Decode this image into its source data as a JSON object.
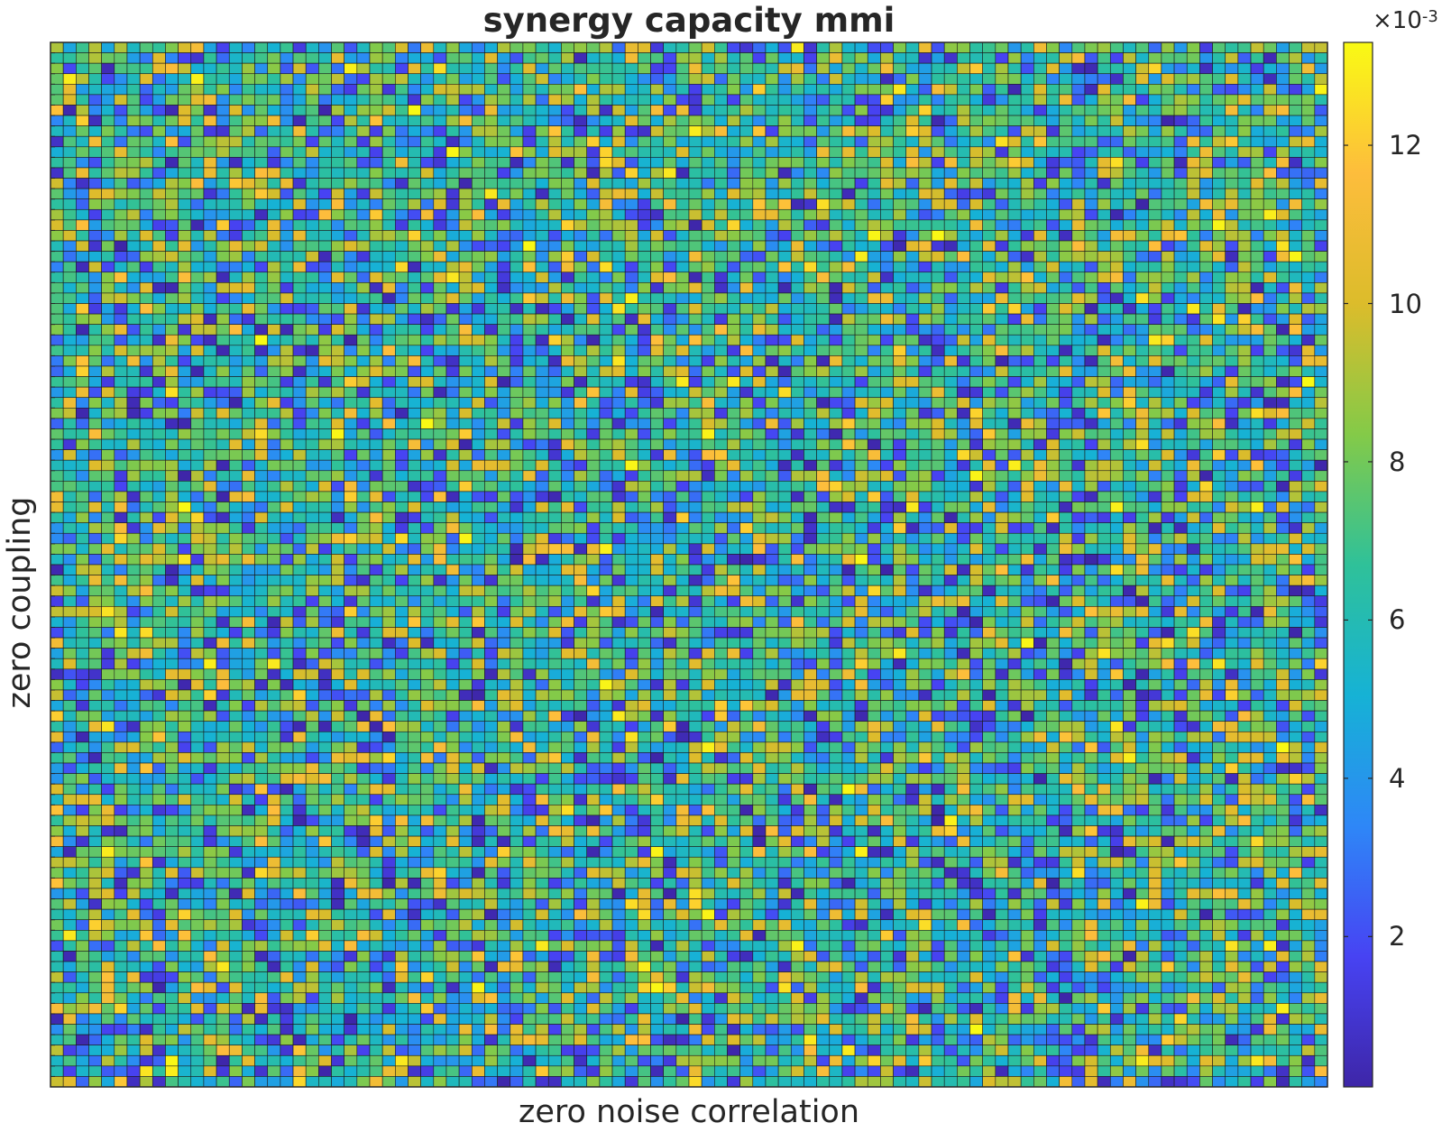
{
  "chart_data": {
    "type": "heatmap",
    "title": "synergy capacity mmi",
    "xlabel": "zero noise correlation",
    "ylabel": "zero coupling",
    "grid": true,
    "rows": 100,
    "cols": 100,
    "value_range": [
      0.0001,
      0.0133
    ],
    "note_values": "cell values are approximately uniform random noise with mean about 0.0068",
    "colorbar": {
      "ticks": [
        2,
        4,
        6,
        8,
        10,
        12
      ],
      "tick_labels": [
        "2",
        "4",
        "6",
        "8",
        "10",
        "12"
      ],
      "exponent_prefix": "×10",
      "exponent": "-3",
      "colormap": "parula",
      "colors": [
        "#3e26a8",
        "#4743f3",
        "#2e87f7",
        "#16b2d5",
        "#2fc199",
        "#84ca48",
        "#dcbc2b",
        "#fdbd3c",
        "#f9fa14"
      ]
    }
  }
}
